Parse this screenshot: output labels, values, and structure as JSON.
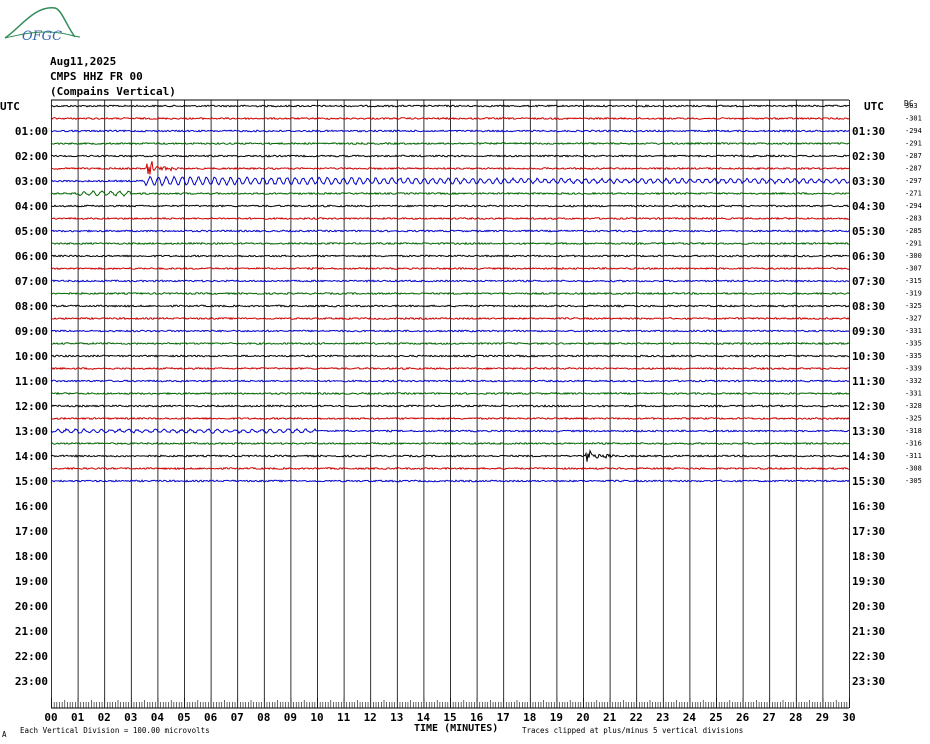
{
  "logo": {
    "text": "OFGC",
    "name": "ofgc-logo"
  },
  "header": {
    "date": "Aug11,2025",
    "station": "CMPS HHZ FR 00",
    "location": "(Compains Vertical)"
  },
  "left_axis_title": "UTC",
  "right_axis_title": "UTC",
  "dc_label": "DC",
  "footer": {
    "scale_note": "Each Vertical Division =  100.00 microvolts",
    "x_title": "TIME (MINUTES)",
    "clip_note": "Traces clipped at plus/minus 5 vertical divisions",
    "corner_mark": "A"
  },
  "colors": {
    "trace_cycle": [
      "#000000",
      "#cc0000",
      "#0000cc",
      "#006600"
    ],
    "grid": "#000000",
    "background": "#ffffff"
  },
  "chart_data": {
    "type": "line",
    "title": "CMPS HHZ FR 00 (Compains Vertical)",
    "xlabel": "TIME (MINUTES)",
    "ylabel": "UTC",
    "xlim": [
      0,
      30
    ],
    "x_ticks": [
      "00",
      "01",
      "02",
      "03",
      "04",
      "05",
      "06",
      "07",
      "08",
      "09",
      "10",
      "11",
      "12",
      "13",
      "14",
      "15",
      "16",
      "17",
      "18",
      "19",
      "20",
      "21",
      "22",
      "23",
      "24",
      "25",
      "26",
      "27",
      "28",
      "29",
      "30"
    ],
    "left_hour_labels": [
      "01:00",
      "02:00",
      "03:00",
      "04:00",
      "05:00",
      "06:00",
      "07:00",
      "08:00",
      "09:00",
      "10:00",
      "11:00",
      "12:00",
      "13:00",
      "14:00",
      "15:00",
      "16:00",
      "17:00",
      "18:00",
      "19:00",
      "20:00",
      "21:00",
      "22:00",
      "23:00"
    ],
    "right_hour_labels": [
      "01:30",
      "02:30",
      "03:30",
      "04:30",
      "05:30",
      "06:30",
      "07:30",
      "08:30",
      "09:30",
      "10:30",
      "11:30",
      "12:30",
      "13:30",
      "14:30",
      "15:30",
      "16:30",
      "17:30",
      "18:30",
      "19:30",
      "20:30",
      "21:30",
      "22:30",
      "23:30"
    ],
    "trace_count": 31,
    "dc_offsets": [
      "303",
      "-301",
      "-294",
      "-291",
      "-287",
      "-287",
      "-297",
      "-271",
      "-294",
      "-283",
      "-285",
      "-291",
      "-300",
      "-307",
      "-315",
      "-319",
      "-325",
      "-327",
      "-331",
      "-335",
      "-335",
      "-339",
      "-332",
      "-331",
      "-328",
      "-325",
      "-318",
      "-316",
      "-311",
      "-308",
      "-305"
    ],
    "events": [
      {
        "trace_index": 5,
        "minute": 3.7,
        "note": "red trace spike"
      },
      {
        "trace_index": 6,
        "minute": 3.5,
        "note": "oscillating signal on blue trace"
      },
      {
        "trace_index": 28,
        "minute": 20.2,
        "note": "black trace spike"
      }
    ],
    "grid": true
  }
}
